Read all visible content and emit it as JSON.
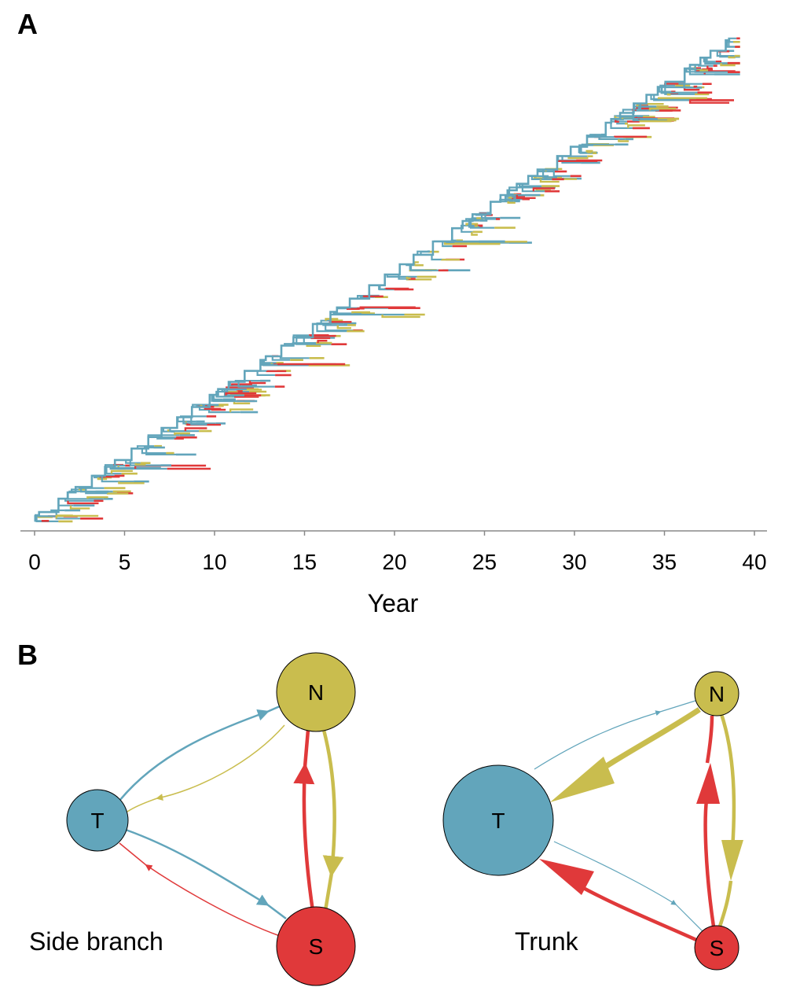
{
  "panels": {
    "a": "A",
    "b": "B"
  },
  "colors": {
    "tropics": "#62a5bb",
    "north": "#c9bd4e",
    "south": "#e0393a",
    "axis": "#888888"
  },
  "chart_data": {
    "type": "line",
    "description_kind": "phylogenetic tree over time",
    "xlabel": "Year",
    "xlim": [
      0,
      40
    ],
    "xticks": [
      0,
      5,
      10,
      15,
      20,
      25,
      30,
      35,
      40
    ],
    "tick_labels": [
      "0",
      "5",
      "10",
      "15",
      "20",
      "25",
      "30",
      "35",
      "40"
    ]
  },
  "networks": [
    {
      "label": "Side branch",
      "nodes": [
        {
          "id": "T",
          "label": "T",
          "color": "tropics"
        },
        {
          "id": "N",
          "label": "N",
          "color": "north"
        },
        {
          "id": "S",
          "label": "S",
          "color": "south"
        }
      ]
    },
    {
      "label": "Trunk",
      "nodes": [
        {
          "id": "T",
          "label": "T",
          "color": "tropics"
        },
        {
          "id": "N",
          "label": "N",
          "color": "north"
        },
        {
          "id": "S",
          "label": "S",
          "color": "south"
        }
      ]
    }
  ]
}
